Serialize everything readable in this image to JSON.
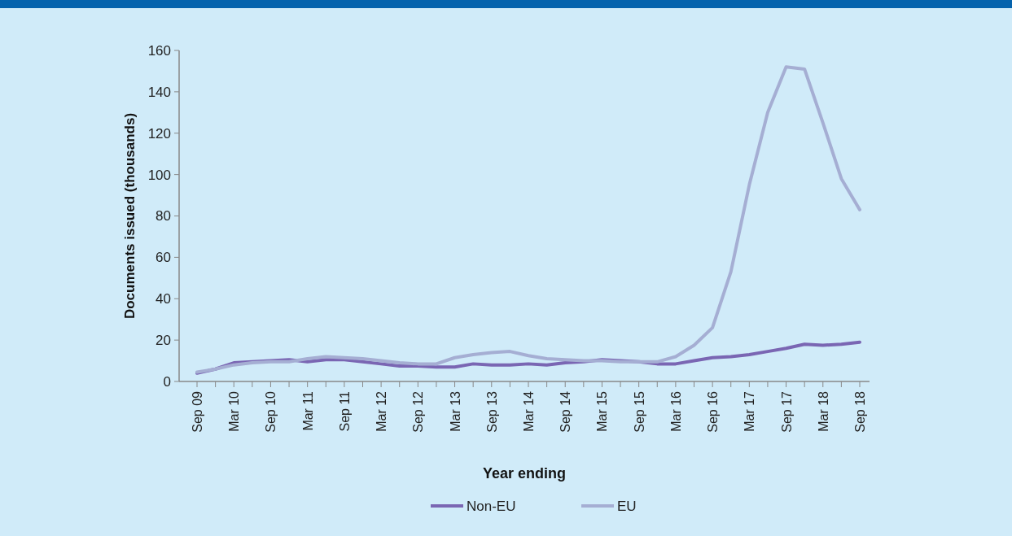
{
  "chart_data": {
    "type": "line",
    "xlabel": "Year ending",
    "ylabel": "Documents issued (thousands)",
    "categories": [
      "Sep 09",
      null,
      "Mar 10",
      null,
      "Sep 10",
      null,
      "Mar 11",
      null,
      "Sep 11",
      null,
      "Mar 12",
      null,
      "Sep 12",
      null,
      "Mar 13",
      null,
      "Sep 13",
      null,
      "Mar 14",
      null,
      "Sep 14",
      null,
      "Mar 15",
      null,
      "Sep 15",
      null,
      "Mar 16",
      null,
      "Sep 16",
      null,
      "Mar 17",
      null,
      "Sep 17",
      null,
      "Mar 18",
      null,
      "Sep 18"
    ],
    "series": [
      {
        "name": "Non-EU",
        "color": "#7a66b3",
        "values": [
          4,
          6,
          9,
          9.5,
          10,
          10.5,
          9.5,
          10.5,
          10.5,
          9.5,
          8.5,
          7.5,
          7.5,
          7,
          7,
          8.5,
          8,
          8,
          8.5,
          8,
          9,
          9.5,
          10.5,
          10,
          9.5,
          8.5,
          8.5,
          10,
          11.5,
          12,
          13,
          14.5,
          16,
          18,
          17.5,
          18,
          19
        ]
      },
      {
        "name": "EU",
        "color": "#a5aed3",
        "values": [
          4.5,
          6,
          8,
          9,
          9.5,
          9.5,
          11,
          12,
          11.5,
          11,
          10,
          9,
          8.5,
          8.5,
          11.5,
          13,
          14,
          14.5,
          12.5,
          11,
          10.5,
          10,
          10,
          9.5,
          9.5,
          9.5,
          12,
          17.5,
          26,
          53,
          95,
          130,
          152,
          151,
          125,
          98,
          83
        ]
      }
    ],
    "ylim": [
      0,
      160
    ],
    "yticks": [
      0,
      20,
      40,
      60,
      80,
      100,
      120,
      140,
      160
    ],
    "grid": false,
    "legend": "bottom",
    "line_style": "solid"
  }
}
